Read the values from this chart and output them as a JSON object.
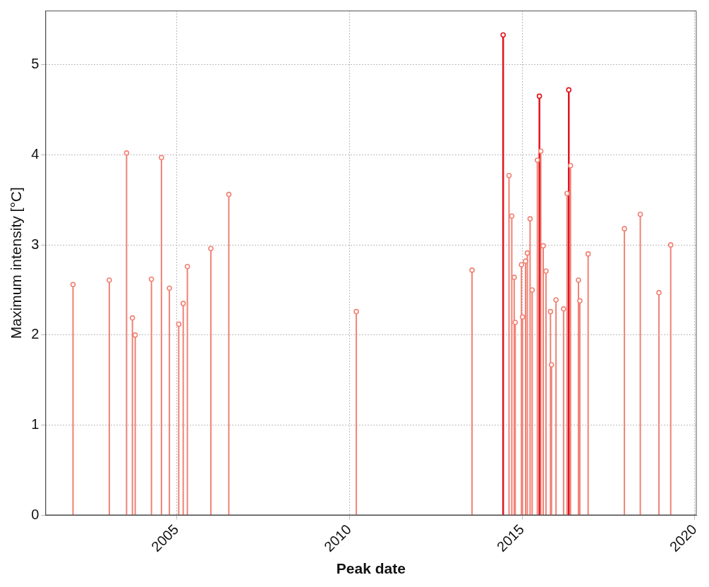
{
  "chart_data": {
    "type": "lollipop",
    "xlabel": "Peak date",
    "ylabel": "Maximum intensity [°C]",
    "series": [
      {
        "color": "#f08275",
        "x": [
          2002.0,
          2003.05,
          2003.55,
          2003.72,
          2003.8,
          2004.27,
          2004.56,
          2004.79,
          2005.06,
          2005.19,
          2005.31,
          2005.99,
          2006.51,
          2010.2,
          2013.55,
          2014.62,
          2014.7,
          2014.77,
          2014.8,
          2014.98,
          2015.01,
          2015.1,
          2015.15,
          2015.23,
          2015.29,
          2015.44,
          2015.54,
          2015.61,
          2015.69,
          2015.82,
          2015.85,
          2015.98,
          2016.2,
          2016.3,
          2016.4,
          2016.63,
          2016.67,
          2016.91,
          2017.96,
          2018.42,
          2018.96,
          2019.3
        ],
        "values": [
          2.56,
          2.61,
          4.02,
          2.19,
          2.0,
          2.62,
          3.97,
          2.52,
          2.12,
          2.35,
          2.76,
          2.96,
          3.56,
          2.26,
          2.72,
          3.77,
          3.32,
          2.64,
          2.14,
          2.78,
          2.2,
          2.82,
          2.91,
          3.29,
          2.5,
          3.94,
          4.04,
          2.99,
          2.71,
          2.26,
          1.67,
          2.39,
          2.29,
          3.57,
          3.88,
          2.61,
          2.38,
          2.9,
          3.18,
          3.34,
          2.47,
          3.0
        ]
      },
      {
        "color": "#e0141e",
        "x": [
          2014.45,
          2015.5,
          2016.35
        ],
        "values": [
          5.33,
          4.65,
          4.72
        ]
      }
    ],
    "xlim": [
      2001.2,
      2020.05
    ],
    "xticks": [
      2005,
      2010,
      2015,
      2020
    ],
    "ylim": [
      0,
      5.6
    ],
    "yticks": [
      0,
      1,
      2,
      3,
      4,
      5
    ],
    "grid": true,
    "legend": false,
    "marker": "circle"
  }
}
